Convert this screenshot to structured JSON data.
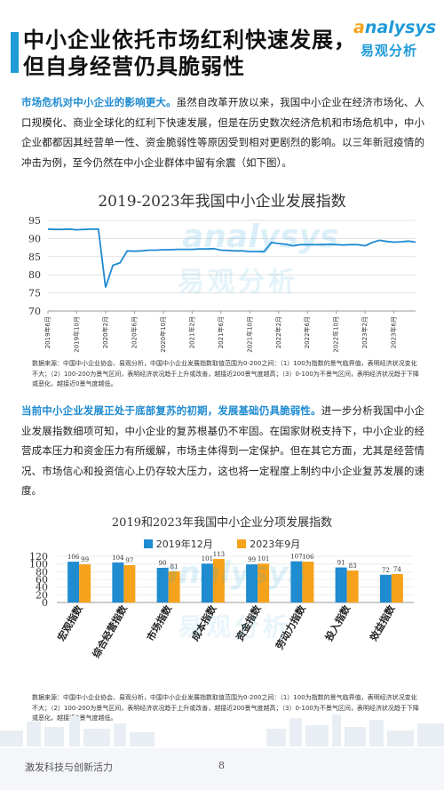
{
  "header": {
    "title_line1": "中小企业依托市场红利快速发展，",
    "title_line2": "但自身经营仍具脆弱性",
    "logo_en_accent": "a",
    "logo_en_rest": "nalysys",
    "logo_cn": "易观分析"
  },
  "section1": {
    "lead": "市场危机对中小企业的影响更大。",
    "body": "虽然自改革开放以来，我国中小企业在经济市场化、人口规模化、商业全球化的红利下快速发展，但是在历史数次经济危机和市场危机中，中小企业都都因其经营单一性、资金脆弱性等原因受到相对更剧烈的影响。以三年新冠疫情的冲击为例，至今仍然在中小企业群体中留有余震（如下图）。"
  },
  "chart1": {
    "title": "2019-2023年我国中小企业发展指数",
    "note": "数据来源：中国中小企业协会、易观分析，中国中小企业发展指数取值范围为0-200之间：（1）100为指数的景气临界值，表明经济状况变化不大；（2）100-200为景气区间，表明经济状况趋于上升或改善，越接近200景气度越高；（3）0-100为不景气区间，表明经济状况趋于下降或恶化，越接近0景气度越低。"
  },
  "section2": {
    "lead": "当前中小企业发展正处于底部复苏的初期，发展基础仍具脆弱性。",
    "body": "进一步分析我国中小企业发展指数细项可知，中小企业的复苏根基仍不牢固。在国家财税支持下，中小企业的经营成本压力和资金压力有所缓解，市场主体得到一定保护。但在其它方面，尤其是经营情况、市场信心和投资信心上仍存较大压力，这也将一定程度上制约中小企业复苏发展的速度。"
  },
  "chart2": {
    "title": "2019和2023年我国中小企业分项发展指数",
    "note": "数据来源：中国中小企业协会、易观分析，中国中小企业发展指数取值范围为0-200之间：（1）100为指数的景气临界值，表明经济状况变化不大；（2）100-200为景气区间，表明经济状况趋于上升或改善，越接近200景气度越高；（3）0-100为不景气区间，表明经济状况趋于下降或恶化，越接近0景气度越低。"
  },
  "watermark": {
    "en": "analysys",
    "cn": "易观分析"
  },
  "footer": {
    "left": "激发科技与创新活力",
    "page": "8"
  },
  "colors": {
    "accent": "#1f9bd7",
    "line": "#1f8bd0",
    "series2019": "#1f8bd0",
    "series2023": "#f7a21b"
  },
  "chart_data": [
    {
      "type": "line",
      "title": "2019-2023年我国中小企业发展指数",
      "ylim": [
        70,
        95
      ],
      "yticks": [
        70,
        75,
        80,
        85,
        90,
        95
      ],
      "x": [
        "2019年6月",
        "2019年7月",
        "2019年8月",
        "2019年9月",
        "2019年10月",
        "2019年11月",
        "2019年12月",
        "2020年1月",
        "2020年2月",
        "2020年3月",
        "2020年4月",
        "2020年5月",
        "2020年6月",
        "2020年7月",
        "2020年8月",
        "2020年9月",
        "2020年10月",
        "2020年11月",
        "2020年12月",
        "2021年1月",
        "2021年2月",
        "2021年3月",
        "2021年4月",
        "2021年5月",
        "2021年6月",
        "2021年7月",
        "2021年8月",
        "2021年9月",
        "2021年10月",
        "2021年11月",
        "2021年12月",
        "2022年1月",
        "2022年2月",
        "2022年3月",
        "2022年4月",
        "2022年5月",
        "2022年6月",
        "2022年7月",
        "2022年8月",
        "2022年9月",
        "2022年10月",
        "2022年11月",
        "2022年12月",
        "2023年1月",
        "2023年2月",
        "2023年3月",
        "2023年4月",
        "2023年5月",
        "2023年6月",
        "2023年7月",
        "2023年8月",
        "2023年9月"
      ],
      "xtick_labels": [
        "2019年6月",
        "2019年10月",
        "2020年2月",
        "2020年6月",
        "2020年10月",
        "2021年2月",
        "2021年6月",
        "2021年10月",
        "2022年2月",
        "2022年6月",
        "2022年10月",
        "2023年2月",
        "2023年6月"
      ],
      "values": [
        92.6,
        92.5,
        92.5,
        92.6,
        92.4,
        92.5,
        92.6,
        92.6,
        76.5,
        82.6,
        83.3,
        86.6,
        86.5,
        86.6,
        86.8,
        86.8,
        86.9,
        86.9,
        87.0,
        87.0,
        87.0,
        87.1,
        87.1,
        87.2,
        86.8,
        86.7,
        86.6,
        86.6,
        86.4,
        86.4,
        86.4,
        88.9,
        88.6,
        88.4,
        88.0,
        88.3,
        88.3,
        88.3,
        88.3,
        88.4,
        88.3,
        88.2,
        88.3,
        88.3,
        88.0,
        88.9,
        89.5,
        89.2,
        89.0,
        89.1,
        89.3,
        89.0
      ]
    },
    {
      "type": "bar",
      "title": "2019和2023年我国中小企业分项发展指数",
      "categories": [
        "宏观指数",
        "综合经营指数",
        "市场指数",
        "成本指数",
        "资金指数",
        "劳动力指数",
        "投入指数",
        "效益指数"
      ],
      "ylim": [
        0,
        120
      ],
      "yticks": [
        0,
        20,
        40,
        60,
        80,
        100,
        120
      ],
      "series": [
        {
          "name": "2019年12月",
          "values": [
            106,
            104,
            90,
            101,
            99,
            107,
            91,
            72
          ]
        },
        {
          "name": "2023年9月",
          "values": [
            99,
            97,
            81,
            113,
            101,
            106,
            83,
            74
          ]
        }
      ]
    }
  ]
}
